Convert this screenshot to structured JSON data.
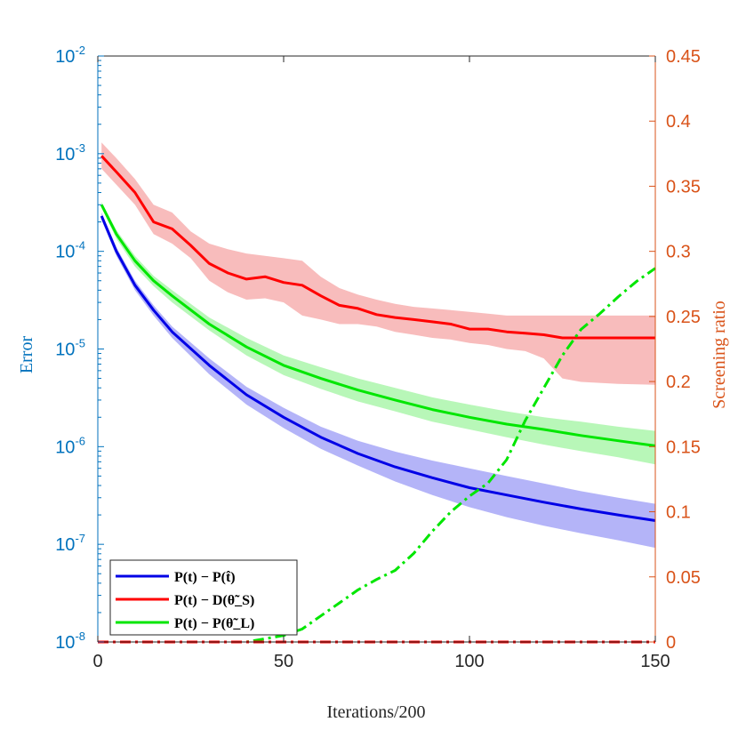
{
  "colors": {
    "left_axis": "#0072BD",
    "right_axis": "#D95319",
    "x_axis": "#262626",
    "blue": "#0000E6",
    "red": "#FF0000",
    "green": "#00E600",
    "blue_band": "#B0B0F8",
    "red_band": "#F8B8B8",
    "green_band": "#B4F7B4"
  },
  "chart_data": {
    "type": "line",
    "xlabel": "Iterations/200",
    "ylabel_left": "Error",
    "ylabel_right": "Screening ratio",
    "x_range": [
      0,
      150
    ],
    "y_left_scale": "log",
    "y_left_range": [
      1e-08,
      0.01
    ],
    "y_right_range": [
      0,
      0.45
    ],
    "x_ticks": [
      "0",
      "50",
      "100",
      "150"
    ],
    "y_left_ticks": [
      {
        "base": "10",
        "exp": "-8"
      },
      {
        "base": "10",
        "exp": "-7"
      },
      {
        "base": "10",
        "exp": "-6"
      },
      {
        "base": "10",
        "exp": "-5"
      },
      {
        "base": "10",
        "exp": "-4"
      },
      {
        "base": "10",
        "exp": "-3"
      },
      {
        "base": "10",
        "exp": "-2"
      }
    ],
    "y_right_ticks": [
      "0",
      "0.05",
      "0.1",
      "0.15",
      "0.2",
      "0.25",
      "0.3",
      "0.35",
      "0.4",
      "0.45"
    ],
    "legend": {
      "placement": "bottom-left",
      "entries": [
        {
          "label": "P(t) − P(t̂)",
          "color": "blue"
        },
        {
          "label": "P(t) − D(θ̃_S)",
          "color": "red"
        },
        {
          "label": "P(t) − P(θ̃_L)",
          "color": "green"
        }
      ]
    },
    "series": [
      {
        "name": "P(t) − P(t̂)",
        "color": "blue",
        "axis": "left",
        "x": [
          1,
          5,
          10,
          15,
          20,
          30,
          40,
          50,
          60,
          70,
          80,
          90,
          100,
          110,
          120,
          130,
          140,
          150
        ],
        "y": [
          0.00023,
          0.0001,
          4.5e-05,
          2.5e-05,
          1.5e-05,
          6.8e-06,
          3.4e-06,
          2e-06,
          1.25e-06,
          8.5e-07,
          6.2e-07,
          4.8e-07,
          3.8e-07,
          3.2e-07,
          2.7e-07,
          2.3e-07,
          2e-07,
          1.75e-07
        ],
        "upper": [
          0.00025,
          0.00011,
          5e-05,
          2.8e-05,
          1.7e-05,
          8e-06,
          4.1e-06,
          2.5e-06,
          1.6e-06,
          1.15e-06,
          8.9e-07,
          7.2e-07,
          6e-07,
          5e-07,
          4.2e-07,
          3.5e-07,
          3e-07,
          2.6e-07
        ],
        "lower": [
          0.00021,
          9e-05,
          4e-05,
          2.2e-05,
          1.3e-05,
          5.5e-06,
          2.7e-06,
          1.55e-06,
          9.5e-07,
          6.4e-07,
          4.4e-07,
          3.2e-07,
          2.4e-07,
          1.9e-07,
          1.55e-07,
          1.3e-07,
          1.1e-07,
          9.2e-08
        ]
      },
      {
        "name": "P(t) − D(θ̃_S)",
        "color": "red",
        "axis": "left",
        "x": [
          1,
          5,
          10,
          15,
          20,
          25,
          30,
          35,
          40,
          45,
          50,
          55,
          60,
          65,
          70,
          75,
          80,
          85,
          90,
          95,
          100,
          105,
          110,
          115,
          120,
          125,
          130,
          140,
          150
        ],
        "y": [
          0.00095,
          0.00065,
          0.0004,
          0.0002,
          0.00017,
          0.000115,
          7.5e-05,
          6e-05,
          5.2e-05,
          5.5e-05,
          4.8e-05,
          4.5e-05,
          3.5e-05,
          2.8e-05,
          2.6e-05,
          2.25e-05,
          2.1e-05,
          2e-05,
          1.9e-05,
          1.8e-05,
          1.6e-05,
          1.6e-05,
          1.5e-05,
          1.45e-05,
          1.4e-05,
          1.3e-05,
          1.3e-05,
          1.3e-05,
          1.3e-05
        ],
        "upper": [
          0.0013,
          0.0009,
          0.00055,
          0.0003,
          0.00025,
          0.00016,
          0.00012,
          0.000105,
          9.5e-05,
          9e-05,
          8.5e-05,
          8e-05,
          5.5e-05,
          4.2e-05,
          3.6e-05,
          3.2e-05,
          2.9e-05,
          2.7e-05,
          2.6e-05,
          2.5e-05,
          2.4e-05,
          2.3e-05,
          2.2e-05,
          2.2e-05,
          2.2e-05,
          2.2e-05,
          2.2e-05,
          2.2e-05,
          2.2e-05
        ],
        "lower": [
          0.0007,
          0.00048,
          0.0003,
          0.00015,
          0.00012,
          8.5e-05,
          5e-05,
          3.8e-05,
          3.2e-05,
          3.3e-05,
          3e-05,
          2.2e-05,
          2e-05,
          1.8e-05,
          1.8e-05,
          1.7e-05,
          1.5e-05,
          1.4e-05,
          1.3e-05,
          1.25e-05,
          1.15e-05,
          1.1e-05,
          1e-05,
          9.5e-06,
          8e-06,
          5e-06,
          4.6e-06,
          4.4e-06,
          4.3e-06
        ]
      },
      {
        "name": "P(t) − P(θ̃_L)",
        "color": "green",
        "axis": "left",
        "x": [
          1,
          5,
          10,
          15,
          20,
          30,
          40,
          50,
          60,
          70,
          80,
          90,
          100,
          110,
          120,
          130,
          140,
          150
        ],
        "y": [
          0.0003,
          0.00015,
          8e-05,
          5e-05,
          3.5e-05,
          1.8e-05,
          1.05e-05,
          6.8e-06,
          5e-06,
          3.8e-06,
          3e-06,
          2.4e-06,
          2e-06,
          1.7e-06,
          1.5e-06,
          1.3e-06,
          1.15e-06,
          1.02e-06
        ],
        "upper": [
          0.00032,
          0.000165,
          9e-05,
          5.6e-05,
          4e-05,
          2.1e-05,
          1.3e-05,
          8.6e-06,
          6.5e-06,
          5e-06,
          4e-06,
          3.2e-06,
          2.7e-06,
          2.3e-06,
          2e-06,
          1.8e-06,
          1.6e-06,
          1.45e-06
        ],
        "lower": [
          0.00028,
          0.000135,
          7e-05,
          4.4e-05,
          3e-05,
          1.55e-05,
          8.6e-06,
          5.4e-06,
          3.9e-06,
          2.9e-06,
          2.3e-06,
          1.8e-06,
          1.5e-06,
          1.25e-06,
          1.05e-06,
          9e-07,
          7.8e-07,
          6.6e-07
        ]
      },
      {
        "name": "Screening ratio (green)",
        "color": "green",
        "axis": "right",
        "dash": "dashdot",
        "x": [
          0,
          40,
          50,
          55,
          60,
          65,
          70,
          75,
          80,
          85,
          90,
          95,
          100,
          105,
          110,
          115,
          120,
          125,
          130,
          135,
          140,
          145,
          150
        ],
        "y": [
          0.0,
          0.0,
          0.005,
          0.01,
          0.02,
          0.03,
          0.04,
          0.048,
          0.055,
          0.068,
          0.085,
          0.1,
          0.112,
          0.122,
          0.14,
          0.17,
          0.195,
          0.22,
          0.24,
          0.252,
          0.265,
          0.277,
          0.287
        ]
      },
      {
        "name": "Screening ratio (red)",
        "color": "red",
        "axis": "right",
        "dash": "dashdot",
        "x": [
          0,
          150
        ],
        "y": [
          0.0,
          0.0
        ]
      }
    ]
  }
}
